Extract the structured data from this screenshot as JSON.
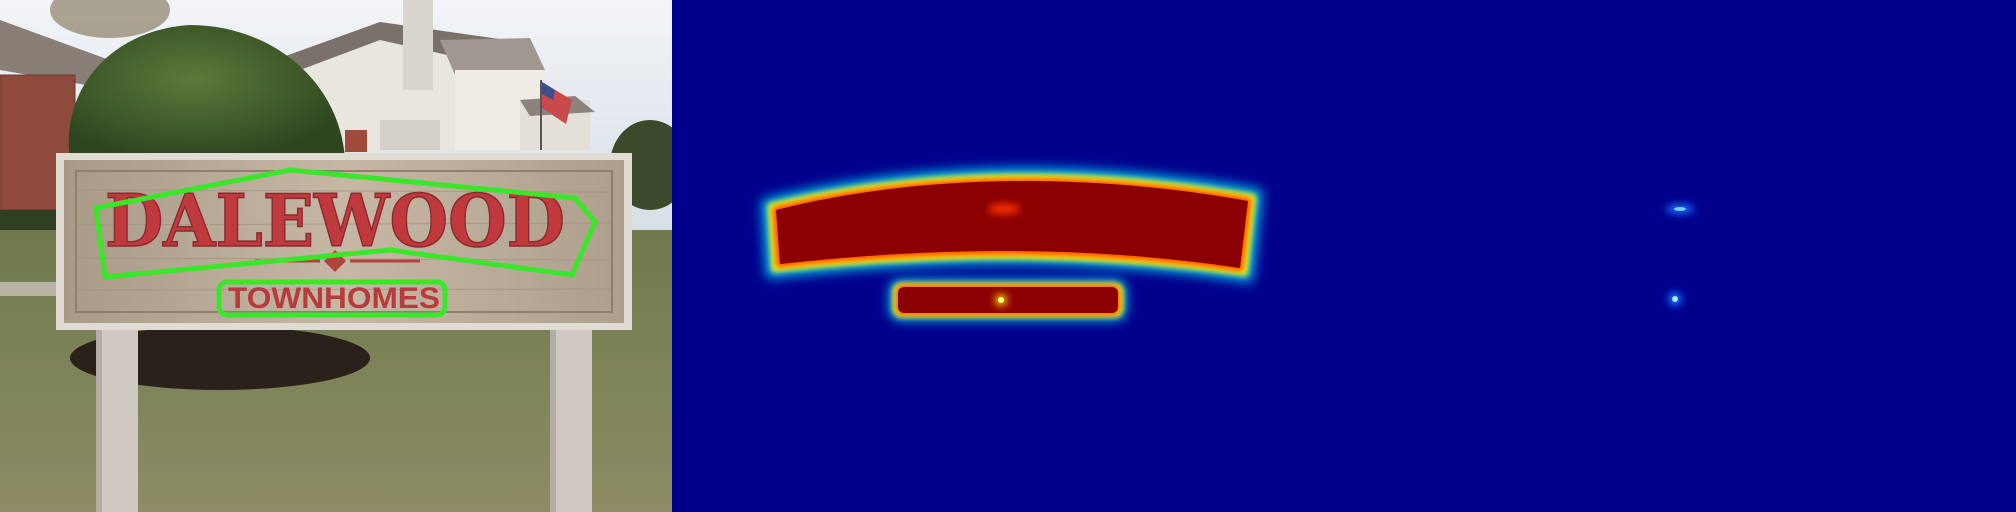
{
  "panels": [
    {
      "kind": "photo",
      "sign": {
        "line1": "DALEWOOD",
        "line2": "TOWNHOMES"
      },
      "colors": {
        "sky": "#dfe6ee",
        "bush": "#3f5a2a",
        "grass": "#7d8456",
        "board": "#b8a892",
        "sign_text": "#c0393d",
        "detection_box": "#39e629",
        "post": "#cfc9c2"
      }
    },
    {
      "kind": "region_score_heatmap",
      "colors": {
        "background": "#00008b",
        "high": "#8b0000",
        "peak": "#ff3300"
      }
    },
    {
      "kind": "affinity_score_heatmap",
      "colors": {
        "background": "#00008b",
        "blob": "#2f7bff"
      }
    }
  ]
}
